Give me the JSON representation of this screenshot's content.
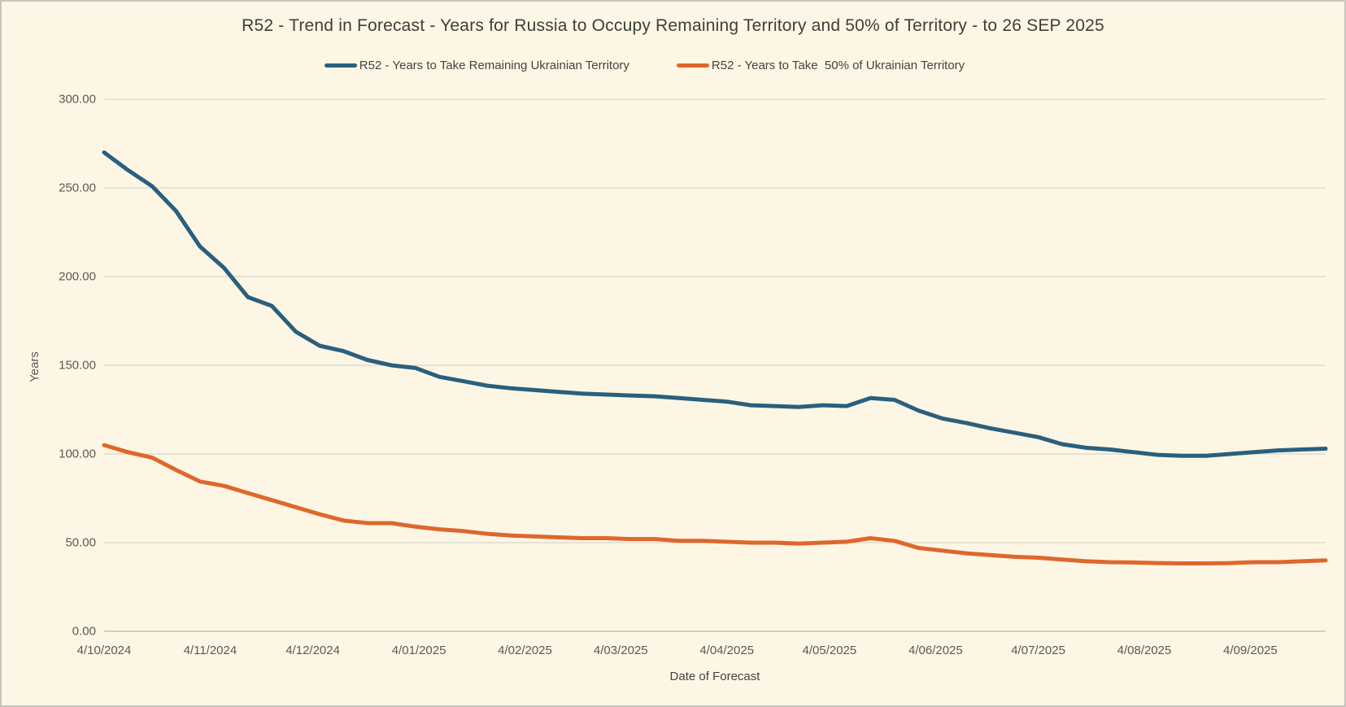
{
  "frame": {
    "background": "#fdf6e4",
    "border_color": "#c9c5bc"
  },
  "chart_data": {
    "type": "line",
    "title": "R52 - Trend in Forecast - Years for Russia to Occupy Remaining Territory and 50% of Territory - to 26 SEP 2025",
    "xlabel": "Date of Forecast",
    "ylabel": "Years",
    "ylim": [
      0,
      300
    ],
    "grid": true,
    "legend_position": "top-center",
    "gridline_color": "#d9d5c9",
    "axis_line_color": "#c4c0b4",
    "text_color": "#5a5954",
    "title_color": "#3f3e3b",
    "y_ticks": [
      {
        "value": 0,
        "label": "0.00"
      },
      {
        "value": 50,
        "label": "50.00"
      },
      {
        "value": 100,
        "label": "100.00"
      },
      {
        "value": 150,
        "label": "150.00"
      },
      {
        "value": 200,
        "label": "200.00"
      },
      {
        "value": 250,
        "label": "250.00"
      },
      {
        "value": 300,
        "label": "300.00"
      }
    ],
    "x_span_days": 357,
    "x_ticks": [
      {
        "label": "4/10/2024",
        "day": 0
      },
      {
        "label": "4/11/2024",
        "day": 31
      },
      {
        "label": "4/12/2024",
        "day": 61
      },
      {
        "label": "4/01/2025",
        "day": 92
      },
      {
        "label": "4/02/2025",
        "day": 123
      },
      {
        "label": "4/03/2025",
        "day": 151
      },
      {
        "label": "4/04/2025",
        "day": 182
      },
      {
        "label": "4/05/2025",
        "day": 212
      },
      {
        "label": "4/06/2025",
        "day": 243
      },
      {
        "label": "4/07/2025",
        "day": 273
      },
      {
        "label": "4/08/2025",
        "day": 304
      },
      {
        "label": "4/09/2025",
        "day": 335
      }
    ],
    "categories": [
      "4/10/2024",
      "11/10/2024",
      "18/10/2024",
      "25/10/2024",
      "1/11/2024",
      "8/11/2024",
      "15/11/2024",
      "22/11/2024",
      "29/11/2024",
      "6/12/2024",
      "13/12/2024",
      "20/12/2024",
      "27/12/2024",
      "3/01/2025",
      "10/01/2025",
      "17/01/2025",
      "24/01/2025",
      "31/01/2025",
      "7/02/2025",
      "14/02/2025",
      "21/02/2025",
      "28/02/2025",
      "7/03/2025",
      "14/03/2025",
      "21/03/2025",
      "28/03/2025",
      "4/04/2025",
      "11/04/2025",
      "18/04/2025",
      "25/04/2025",
      "2/05/2025",
      "9/05/2025",
      "16/05/2025",
      "23/05/2025",
      "30/05/2025",
      "6/06/2025",
      "13/06/2025",
      "20/06/2025",
      "27/06/2025",
      "4/07/2025",
      "11/07/2025",
      "18/07/2025",
      "25/07/2025",
      "1/08/2025",
      "8/08/2025",
      "15/08/2025",
      "22/08/2025",
      "29/08/2025",
      "5/09/2025",
      "12/09/2025",
      "19/09/2025",
      "26/09/2025"
    ],
    "series": [
      {
        "name": "R52 - Years to Take Remaining Ukrainian Territory",
        "color": "#2a5f7e",
        "values": [
          270,
          260,
          251,
          237,
          217,
          205,
          188.5,
          183.5,
          169,
          161,
          158,
          153,
          150,
          148.5,
          143.5,
          141,
          138.5,
          137,
          136,
          135,
          134,
          133.5,
          133,
          132.5,
          131.5,
          130.5,
          129.5,
          127.5,
          127,
          126.5,
          127.5,
          127,
          131.5,
          130.5,
          124.5,
          120,
          117.5,
          114.5,
          112,
          109.5,
          105.5,
          103.5,
          102.5,
          101,
          99.5,
          99,
          99,
          100,
          101,
          102,
          102.5,
          103
        ]
      },
      {
        "name": "R52 - Years to Take  50% of Ukrainian Territory",
        "color": "#de672c",
        "values": [
          105,
          101,
          98,
          91,
          84.5,
          82,
          78,
          74,
          70,
          66,
          62.5,
          61,
          61,
          59,
          57.5,
          56.5,
          55,
          54,
          53.5,
          53,
          52.5,
          52.5,
          52,
          52,
          51,
          51,
          50.5,
          50,
          50,
          49.5,
          50,
          50.5,
          52.5,
          51,
          47,
          45.5,
          44,
          43,
          42,
          41.5,
          40.5,
          39.5,
          39,
          38.8,
          38.5,
          38.3,
          38.3,
          38.5,
          39,
          39,
          39.5,
          40
        ]
      }
    ]
  }
}
